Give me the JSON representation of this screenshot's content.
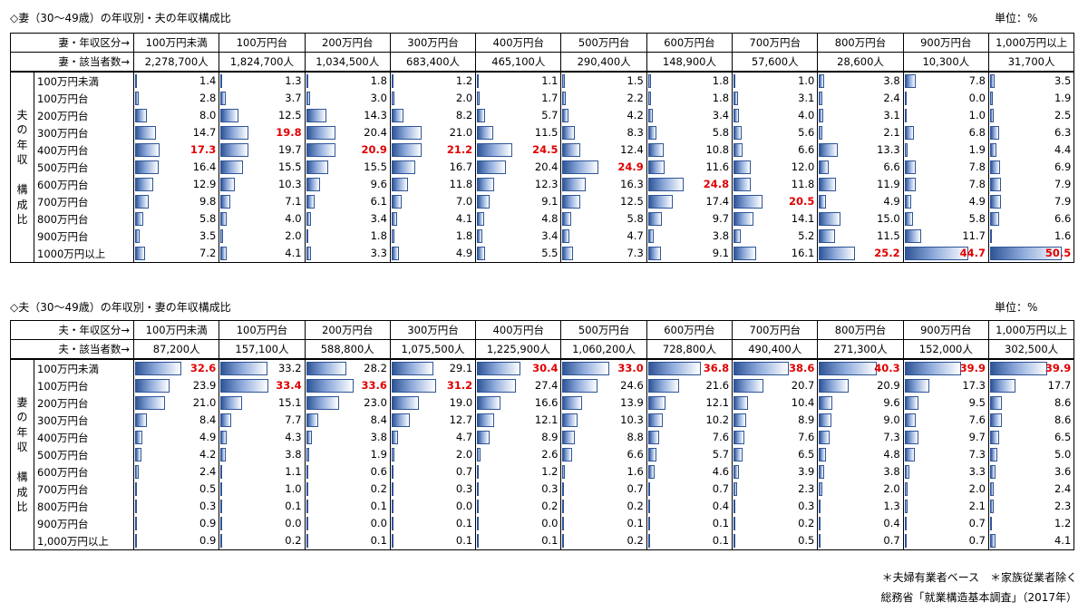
{
  "table1": {
    "title": "◇妻（30～49歳）の年収別・夫の年収構成比",
    "unit": "単位：%",
    "header_label": "妻・年収区分→",
    "count_label": "妻・該当者数→",
    "side_label": [
      "夫",
      "の",
      "年",
      "収",
      "",
      "構",
      "成",
      "比"
    ],
    "columns": [
      "100万円未満",
      "100万円台",
      "200万円台",
      "300万円台",
      "400万円台",
      "500万円台",
      "600万円台",
      "700万円台",
      "800万円台",
      "900万円台",
      "1,000万円以上"
    ],
    "counts": [
      "2,278,700人",
      "1,824,700人",
      "1,034,500人",
      "683,400人",
      "465,100人",
      "290,400人",
      "148,900人",
      "57,600人",
      "28,600人",
      "10,300人",
      "31,700人"
    ],
    "rows": [
      "100万円未満",
      "100万円台",
      "200万円台",
      "300万円台",
      "400万円台",
      "500万円台",
      "600万円台",
      "700万円台",
      "800万円台",
      "900万円台",
      "1000万円以上"
    ]
  },
  "table2": {
    "title": "◇夫（30～49歳）の年収別・妻の年収構成比",
    "unit": "単位：%",
    "header_label": "夫・年収区分→",
    "count_label": "夫・該当者数→",
    "side_label": [
      "妻",
      "の",
      "年",
      "収",
      "",
      "構",
      "成",
      "比"
    ],
    "columns": [
      "100万円未満",
      "100万円台",
      "200万円台",
      "300万円台",
      "400万円台",
      "500万円台",
      "600万円台",
      "700万円台",
      "800万円台",
      "900万円台",
      "1,000万円以上"
    ],
    "counts": [
      "87,200人",
      "157,100人",
      "588,800人",
      "1,075,500人",
      "1,225,900人",
      "1,060,200人",
      "728,800人",
      "490,400人",
      "271,300人",
      "152,000人",
      "302,500人"
    ],
    "rows": [
      "100万円未満",
      "100万円台",
      "200万円台",
      "300万円台",
      "400万円台",
      "500万円台",
      "600万円台",
      "700万円台",
      "800万円台",
      "900万円台",
      "1,000万円以上"
    ]
  },
  "footer": {
    "note": "＊夫婦有業者ベース　＊家族従業者除く",
    "source": "総務省「就業構造基本調査」（2017年）"
  },
  "colors": {
    "bar": "#2f5597",
    "highlight": "#e00000"
  },
  "chart_data": [
    {
      "type": "table",
      "title": "◇妻（30～49歳）の年収別・夫の年収構成比",
      "value_unit": "%",
      "bar_scale_max": 55,
      "columns": [
        "100万円未満",
        "100万円台",
        "200万円台",
        "300万円台",
        "400万円台",
        "500万円台",
        "600万円台",
        "700万円台",
        "800万円台",
        "900万円台",
        "1,000万円以上"
      ],
      "rows": [
        "100万円未満",
        "100万円台",
        "200万円台",
        "300万円台",
        "400万円台",
        "500万円台",
        "600万円台",
        "700万円台",
        "800万円台",
        "900万円台",
        "1000万円以上"
      ],
      "values": [
        [
          1.4,
          1.3,
          1.8,
          1.2,
          1.1,
          1.5,
          1.8,
          1.0,
          3.8,
          7.8,
          3.5
        ],
        [
          2.8,
          3.7,
          3.0,
          2.0,
          1.7,
          2.2,
          1.8,
          3.1,
          2.4,
          0.0,
          1.9
        ],
        [
          8.0,
          12.5,
          14.3,
          8.2,
          5.7,
          4.2,
          3.4,
          4.0,
          3.1,
          1.0,
          2.5
        ],
        [
          14.7,
          19.8,
          20.4,
          21.0,
          11.5,
          8.3,
          5.8,
          5.6,
          2.1,
          6.8,
          6.3
        ],
        [
          17.3,
          19.7,
          20.9,
          21.2,
          24.5,
          12.4,
          10.8,
          6.6,
          13.3,
          1.9,
          4.4
        ],
        [
          16.4,
          15.5,
          15.5,
          16.7,
          20.4,
          24.9,
          11.6,
          12.0,
          6.6,
          7.8,
          6.9
        ],
        [
          12.9,
          10.3,
          9.6,
          11.8,
          12.3,
          16.3,
          24.8,
          11.8,
          11.9,
          7.8,
          7.9
        ],
        [
          9.8,
          7.1,
          6.1,
          7.0,
          9.1,
          12.5,
          17.4,
          20.5,
          4.9,
          4.9,
          7.9
        ],
        [
          5.8,
          4.0,
          3.4,
          4.1,
          4.8,
          5.8,
          9.7,
          14.1,
          15.0,
          5.8,
          6.6
        ],
        [
          3.5,
          2.0,
          1.8,
          1.8,
          3.4,
          4.7,
          3.8,
          5.2,
          11.5,
          11.7,
          1.6
        ],
        [
          7.2,
          4.1,
          3.3,
          4.9,
          5.5,
          7.3,
          9.1,
          16.1,
          25.2,
          44.7,
          50.5
        ]
      ],
      "highlight": [
        [
          4,
          0
        ],
        [
          3,
          1
        ],
        [
          4,
          2
        ],
        [
          4,
          3
        ],
        [
          4,
          4
        ],
        [
          5,
          5
        ],
        [
          6,
          6
        ],
        [
          7,
          7
        ],
        [
          10,
          8
        ],
        [
          10,
          9
        ],
        [
          10,
          10
        ]
      ]
    },
    {
      "type": "table",
      "title": "◇夫（30～49歳）の年収別・妻の年収構成比",
      "value_unit": "%",
      "bar_scale_max": 55,
      "columns": [
        "100万円未満",
        "100万円台",
        "200万円台",
        "300万円台",
        "400万円台",
        "500万円台",
        "600万円台",
        "700万円台",
        "800万円台",
        "900万円台",
        "1,000万円以上"
      ],
      "rows": [
        "100万円未満",
        "100万円台",
        "200万円台",
        "300万円台",
        "400万円台",
        "500万円台",
        "600万円台",
        "700万円台",
        "800万円台",
        "900万円台",
        "1,000万円以上"
      ],
      "values": [
        [
          32.6,
          33.2,
          28.2,
          29.1,
          30.4,
          33.0,
          36.8,
          38.6,
          40.3,
          39.9,
          39.9
        ],
        [
          23.9,
          33.4,
          33.6,
          31.2,
          27.4,
          24.6,
          21.6,
          20.7,
          20.9,
          17.3,
          17.7
        ],
        [
          21.0,
          15.1,
          23.0,
          19.0,
          16.6,
          13.9,
          12.1,
          10.4,
          9.6,
          9.5,
          8.6
        ],
        [
          8.4,
          7.7,
          8.4,
          12.7,
          12.1,
          10.3,
          10.2,
          8.9,
          9.0,
          7.6,
          8.6
        ],
        [
          4.9,
          4.3,
          3.8,
          4.7,
          8.9,
          8.8,
          7.6,
          7.6,
          7.3,
          9.7,
          6.5
        ],
        [
          4.2,
          3.8,
          1.9,
          2.0,
          2.6,
          6.6,
          5.7,
          6.5,
          4.8,
          7.3,
          5.0
        ],
        [
          2.4,
          1.1,
          0.6,
          0.7,
          1.2,
          1.6,
          4.6,
          3.9,
          3.8,
          3.3,
          3.6
        ],
        [
          0.5,
          1.0,
          0.2,
          0.3,
          0.3,
          0.7,
          0.7,
          2.3,
          2.0,
          2.0,
          2.4
        ],
        [
          0.3,
          0.1,
          0.1,
          0.0,
          0.2,
          0.2,
          0.4,
          0.3,
          1.3,
          2.1,
          2.3
        ],
        [
          0.9,
          0.0,
          0.0,
          0.1,
          0.0,
          0.1,
          0.1,
          0.2,
          0.4,
          0.7,
          1.2
        ],
        [
          0.9,
          0.2,
          0.1,
          0.1,
          0.1,
          0.2,
          0.1,
          0.5,
          0.7,
          0.7,
          4.1
        ]
      ],
      "highlight": [
        [
          0,
          0
        ],
        [
          1,
          1
        ],
        [
          1,
          2
        ],
        [
          1,
          3
        ],
        [
          0,
          4
        ],
        [
          0,
          5
        ],
        [
          0,
          6
        ],
        [
          0,
          7
        ],
        [
          0,
          8
        ],
        [
          0,
          9
        ],
        [
          0,
          10
        ]
      ]
    }
  ]
}
